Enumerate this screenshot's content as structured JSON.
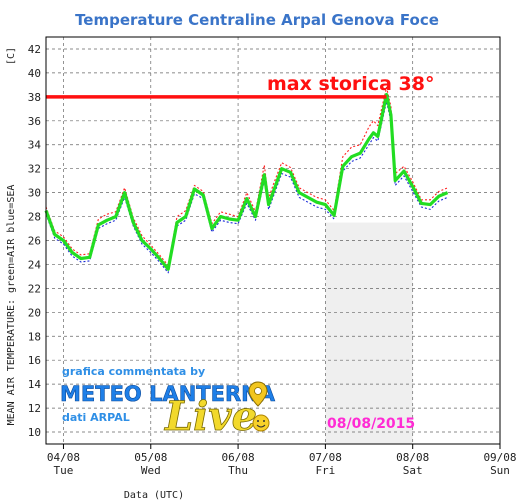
{
  "chart_data": {
    "type": "line",
    "title": "Temperature Centraline Arpal Genova Foce",
    "unit_label": "[C]",
    "ylabel": "MEAN AIR TEMPERATURE: green=AIR  blue=SEA",
    "xlabel": "Data (UTC)",
    "ylim": [
      9,
      43
    ],
    "y_ticks": [
      10,
      12,
      14,
      16,
      18,
      20,
      22,
      24,
      26,
      28,
      30,
      32,
      34,
      36,
      38,
      40,
      42
    ],
    "x_ticks": [
      {
        "value": 0,
        "date": "04/08",
        "day": "Tue"
      },
      {
        "value": 1,
        "date": "05/08",
        "day": "Wed"
      },
      {
        "value": 2,
        "date": "06/08",
        "day": "Thu"
      },
      {
        "value": 3,
        "date": "07/08",
        "day": "Fri"
      },
      {
        "value": 4,
        "date": "08/08",
        "day": "Sat"
      },
      {
        "value": 5,
        "date": "09/08",
        "day": "Sun"
      }
    ],
    "xlim": [
      -0.2,
      5
    ],
    "grid": true,
    "highlight_band": {
      "x_start": 3.0,
      "x_end": 4.0,
      "y_top": 27.5
    },
    "reference_line": {
      "y": 38,
      "x_start": -0.2,
      "x_end": 3.7,
      "label": "max storica 38°"
    },
    "series": [
      {
        "color": "#22dd22",
        "x": [
          -0.2,
          -0.1,
          0.0,
          0.1,
          0.2,
          0.3,
          0.4,
          0.5,
          0.6,
          0.7,
          0.8,
          0.9,
          1.0,
          1.1,
          1.2,
          1.3,
          1.4,
          1.5,
          1.6,
          1.7,
          1.8,
          1.9,
          2.0,
          2.1,
          2.2,
          2.3,
          2.35,
          2.4,
          2.5,
          2.6,
          2.7,
          2.8,
          2.9,
          3.0,
          3.1,
          3.2,
          3.3,
          3.4,
          3.5,
          3.55,
          3.6,
          3.7,
          3.75,
          3.8,
          3.9,
          4.0,
          4.1,
          4.2,
          4.3,
          4.4
        ],
        "y": [
          28.5,
          26.5,
          26.0,
          25.0,
          24.5,
          24.6,
          27.3,
          27.7,
          28.0,
          30.0,
          27.5,
          26.0,
          25.3,
          24.5,
          23.6,
          27.5,
          28.0,
          30.3,
          29.8,
          27.0,
          28.0,
          27.8,
          27.7,
          29.5,
          28.0,
          31.5,
          29.0,
          30.0,
          32.0,
          31.7,
          30.0,
          29.6,
          29.2,
          29.0,
          28.1,
          32.2,
          33.0,
          33.3,
          34.5,
          35.0,
          34.7,
          38.2,
          36.5,
          31.0,
          31.8,
          30.5,
          29.1,
          29.0,
          29.7,
          30.0
        ]
      },
      {
        "color": "#ff2020",
        "x": [
          -0.2,
          -0.1,
          0.0,
          0.1,
          0.2,
          0.3,
          0.4,
          0.5,
          0.6,
          0.7,
          0.8,
          0.9,
          1.0,
          1.1,
          1.2,
          1.3,
          1.4,
          1.5,
          1.6,
          1.7,
          1.8,
          1.9,
          2.0,
          2.1,
          2.2,
          2.3,
          2.35,
          2.4,
          2.5,
          2.6,
          2.7,
          2.8,
          2.9,
          3.0,
          3.1,
          3.2,
          3.3,
          3.4,
          3.5,
          3.55,
          3.6,
          3.7,
          3.75,
          3.8,
          3.9,
          4.0,
          4.1,
          4.2,
          4.3,
          4.4
        ],
        "y": [
          28.8,
          26.8,
          26.3,
          25.3,
          24.8,
          24.9,
          27.8,
          28.2,
          28.4,
          30.4,
          27.9,
          26.4,
          25.6,
          24.8,
          23.9,
          28.0,
          28.5,
          30.6,
          30.1,
          27.4,
          28.4,
          28.2,
          28.0,
          30.0,
          28.4,
          32.3,
          29.5,
          30.6,
          32.5,
          32.1,
          30.4,
          30.0,
          29.6,
          29.4,
          28.5,
          33.0,
          33.8,
          34.0,
          35.5,
          36.0,
          35.6,
          38.8,
          37.2,
          31.6,
          32.2,
          30.9,
          29.4,
          29.4,
          30.1,
          30.4
        ]
      },
      {
        "color": "#1a2ad8",
        "x": [
          -0.2,
          -0.1,
          0.0,
          0.1,
          0.2,
          0.3,
          0.4,
          0.5,
          0.6,
          0.7,
          0.8,
          0.9,
          1.0,
          1.1,
          1.2,
          1.3,
          1.4,
          1.5,
          1.6,
          1.7,
          1.8,
          1.9,
          2.0,
          2.1,
          2.2,
          2.3,
          2.35,
          2.4,
          2.5,
          2.6,
          2.7,
          2.8,
          2.9,
          3.0,
          3.1,
          3.2,
          3.3,
          3.4,
          3.5,
          3.55,
          3.6,
          3.7,
          3.75,
          3.8,
          3.9,
          4.0,
          4.1,
          4.2,
          4.3,
          4.4
        ],
        "y": [
          28.2,
          26.2,
          25.7,
          24.7,
          24.2,
          24.3,
          27.0,
          27.4,
          27.7,
          29.6,
          27.2,
          25.7,
          25.0,
          24.2,
          23.3,
          27.2,
          27.7,
          29.9,
          29.5,
          26.7,
          27.7,
          27.5,
          27.4,
          29.1,
          27.7,
          31.0,
          28.6,
          29.6,
          31.6,
          31.3,
          29.6,
          29.2,
          28.8,
          28.6,
          27.8,
          31.8,
          32.6,
          32.9,
          34.0,
          34.6,
          34.3,
          37.6,
          36.0,
          30.6,
          31.4,
          30.1,
          28.8,
          28.6,
          29.3,
          29.6
        ]
      }
    ]
  },
  "watermark": {
    "line1": "grafica commentata by",
    "brand": "METEO LANTERNA",
    "live": "Live",
    "line3": "dati ARPAL",
    "pin_icon": "map-pin-icon",
    "sun_icon": "smiling-sun-icon"
  },
  "date_stamp": "08/08/2015",
  "colors": {
    "title": "#3a74c8",
    "reference_line": "#ff1010",
    "band": "#efefef",
    "date_stamp": "#ff2bd4"
  }
}
